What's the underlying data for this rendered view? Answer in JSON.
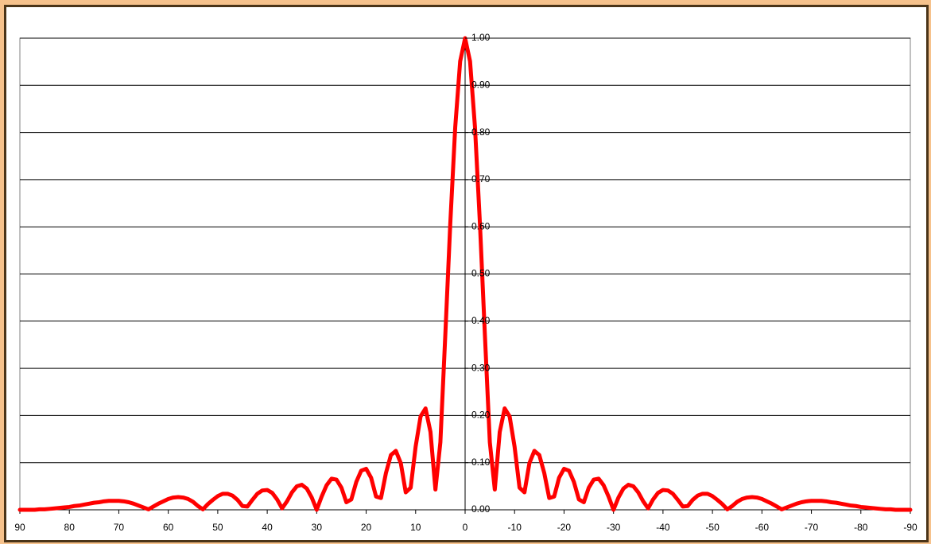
{
  "chart_data": {
    "type": "line",
    "color": "#ff0000",
    "x": [
      90,
      89,
      88,
      87,
      86,
      85,
      84,
      83,
      82,
      81,
      80,
      79,
      78,
      77,
      76,
      75,
      74,
      73,
      72,
      71,
      70,
      69,
      68,
      67,
      66,
      65,
      64,
      63,
      62,
      61,
      60,
      59,
      58,
      57,
      56,
      55,
      54,
      53,
      52,
      51,
      50,
      49,
      48,
      47,
      46,
      45,
      44,
      43,
      42,
      41,
      40,
      39,
      38,
      37,
      36,
      35,
      34,
      33,
      32,
      31,
      30,
      29,
      28,
      27,
      26,
      25,
      24,
      23,
      22,
      21,
      20,
      19,
      18,
      17,
      16,
      15,
      14,
      13,
      12,
      11,
      10,
      9,
      8,
      7,
      6,
      5,
      4,
      3,
      2,
      1,
      0,
      -1,
      -2,
      -3,
      -4,
      -5,
      -6,
      -7,
      -8,
      -9,
      -10,
      -11,
      -12,
      -13,
      -14,
      -15,
      -16,
      -17,
      -18,
      -19,
      -20,
      -21,
      -22,
      -23,
      -24,
      -25,
      -26,
      -27,
      -28,
      -29,
      -30,
      -31,
      -32,
      -33,
      -34,
      -35,
      -36,
      -37,
      -38,
      -39,
      -40,
      -41,
      -42,
      -43,
      -44,
      -45,
      -46,
      -47,
      -48,
      -49,
      -50,
      -51,
      -52,
      -53,
      -54,
      -55,
      -56,
      -57,
      -58,
      -59,
      -60,
      -61,
      -62,
      -63,
      -64,
      -65,
      -66,
      -67,
      -68,
      -69,
      -70,
      -71,
      -72,
      -73,
      -74,
      -75,
      -76,
      -77,
      -78,
      -79,
      -80,
      -81,
      -82,
      -83,
      -84,
      -85,
      -86,
      -87,
      -88,
      -89,
      -90
    ],
    "values": [
      0,
      0,
      0,
      0,
      0.001,
      0.001,
      0.002,
      0.003,
      0.004,
      0.005,
      0.006,
      0.008,
      0.009,
      0.011,
      0.013,
      0.015,
      0.016,
      0.018,
      0.019,
      0.019,
      0.019,
      0.018,
      0.016,
      0.013,
      0.009,
      0.005,
      0.001,
      0.007,
      0.013,
      0.018,
      0.023,
      0.026,
      0.027,
      0.026,
      0.023,
      0.017,
      0.008,
      0.001,
      0.012,
      0.021,
      0.029,
      0.034,
      0.034,
      0.03,
      0.021,
      0.008,
      0.007,
      0.021,
      0.034,
      0.041,
      0.042,
      0.036,
      0.022,
      0.003,
      0.018,
      0.037,
      0.05,
      0.053,
      0.045,
      0.026,
      0,
      0.028,
      0.052,
      0.066,
      0.064,
      0.047,
      0.016,
      0.022,
      0.059,
      0.083,
      0.087,
      0.068,
      0.028,
      0.025,
      0.078,
      0.116,
      0.125,
      0.099,
      0.037,
      0.047,
      0.134,
      0.198,
      0.215,
      0.165,
      0.043,
      0.143,
      0.371,
      0.606,
      0.811,
      0.951,
      1,
      0.951,
      0.811,
      0.606,
      0.371,
      0.143,
      0.043,
      0.165,
      0.215,
      0.198,
      0.134,
      0.047,
      0.037,
      0.099,
      0.125,
      0.116,
      0.078,
      0.025,
      0.028,
      0.068,
      0.087,
      0.083,
      0.059,
      0.022,
      0.016,
      0.047,
      0.064,
      0.066,
      0.052,
      0.028,
      0,
      0.026,
      0.045,
      0.053,
      0.05,
      0.037,
      0.018,
      0.003,
      0.022,
      0.036,
      0.042,
      0.041,
      0.034,
      0.021,
      0.007,
      0.008,
      0.021,
      0.03,
      0.034,
      0.034,
      0.029,
      0.021,
      0.012,
      0.001,
      0.008,
      0.017,
      0.023,
      0.026,
      0.027,
      0.026,
      0.023,
      0.018,
      0.013,
      0.007,
      0.001,
      0.005,
      0.009,
      0.013,
      0.016,
      0.018,
      0.019,
      0.019,
      0.019,
      0.018,
      0.016,
      0.015,
      0.013,
      0.011,
      0.009,
      0.008,
      0.006,
      0.005,
      0.004,
      0.003,
      0.002,
      0.001,
      0.001,
      0,
      0,
      0,
      0
    ],
    "xlim": [
      90,
      -90
    ],
    "xticks": [
      90,
      80,
      70,
      60,
      50,
      40,
      30,
      20,
      10,
      0,
      -10,
      -20,
      -30,
      -40,
      -50,
      -60,
      -70,
      -80,
      -90
    ],
    "ylim": [
      0,
      1
    ],
    "yticks": [
      {
        "value": 0,
        "label": "0.00"
      },
      {
        "value": 0.1,
        "label": "0.10"
      },
      {
        "value": 0.2,
        "label": "0.20"
      },
      {
        "value": 0.3,
        "label": "0.30"
      },
      {
        "value": 0.4,
        "label": "0.40"
      },
      {
        "value": 0.5,
        "label": "0.50"
      },
      {
        "value": 0.6,
        "label": "0.60"
      },
      {
        "value": 0.7,
        "label": "0.70"
      },
      {
        "value": 0.8,
        "label": "0.80"
      },
      {
        "value": 0.9,
        "label": "0.90"
      },
      {
        "value": 1,
        "label": "1.00"
      }
    ],
    "grid": true
  }
}
